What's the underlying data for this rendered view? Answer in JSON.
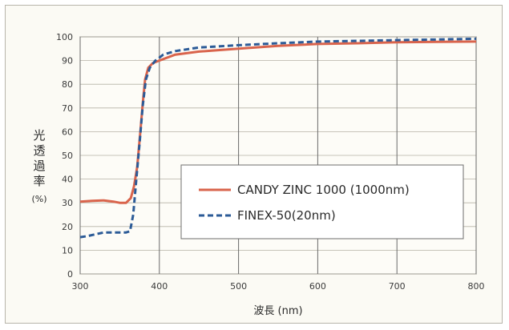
{
  "chart_data": {
    "type": "line",
    "xlabel": "波長 (nm)",
    "ylabel_chars": [
      "光",
      "透",
      "過",
      "率"
    ],
    "ylabel_unit": "(%)",
    "xlim": [
      300,
      800
    ],
    "ylim": [
      0,
      100
    ],
    "xticks": [
      300,
      400,
      500,
      600,
      700,
      800
    ],
    "yticks": [
      0,
      10,
      20,
      30,
      40,
      50,
      60,
      70,
      80,
      90,
      100
    ],
    "grid": true,
    "legend_position": "center-right",
    "series": [
      {
        "name": "CANDY ZINC 1000 (1000nm)",
        "color": "#d9644c",
        "style": "solid",
        "points": [
          [
            300,
            30.5
          ],
          [
            315,
            30.8
          ],
          [
            330,
            31
          ],
          [
            342,
            30.5
          ],
          [
            350,
            30
          ],
          [
            358,
            30
          ],
          [
            364,
            32
          ],
          [
            368,
            37
          ],
          [
            372,
            45
          ],
          [
            376,
            60
          ],
          [
            379,
            72
          ],
          [
            382,
            82
          ],
          [
            386,
            87
          ],
          [
            392,
            89
          ],
          [
            400,
            90
          ],
          [
            420,
            92.5
          ],
          [
            450,
            93.8
          ],
          [
            500,
            95
          ],
          [
            550,
            96.2
          ],
          [
            600,
            97
          ],
          [
            650,
            97.3
          ],
          [
            700,
            97.7
          ],
          [
            750,
            97.9
          ],
          [
            800,
            98
          ]
        ]
      },
      {
        "name": "FINEX-50(20nm)",
        "color": "#2c5b97",
        "style": "dashed",
        "points": [
          [
            300,
            15.5
          ],
          [
            310,
            16
          ],
          [
            320,
            16.8
          ],
          [
            330,
            17.5
          ],
          [
            340,
            17.5
          ],
          [
            350,
            17.5
          ],
          [
            358,
            17.5
          ],
          [
            363,
            18
          ],
          [
            367,
            25
          ],
          [
            371,
            40
          ],
          [
            375,
            55
          ],
          [
            379,
            71
          ],
          [
            383,
            82
          ],
          [
            388,
            87
          ],
          [
            395,
            90
          ],
          [
            405,
            92.5
          ],
          [
            420,
            94
          ],
          [
            450,
            95.5
          ],
          [
            500,
            96.5
          ],
          [
            550,
            97.3
          ],
          [
            600,
            98
          ],
          [
            650,
            98.3
          ],
          [
            700,
            98.6
          ],
          [
            750,
            98.9
          ],
          [
            800,
            99.2
          ]
        ]
      }
    ]
  }
}
